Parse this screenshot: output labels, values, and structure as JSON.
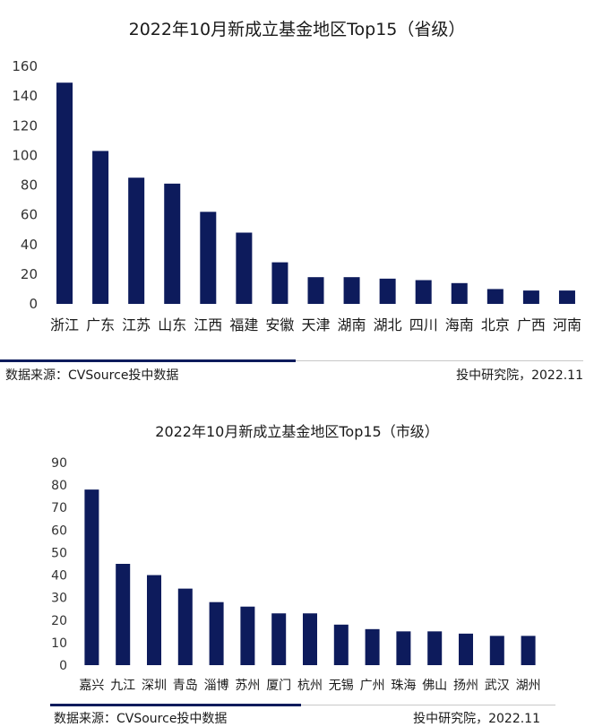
{
  "colors": {
    "bar": "#0d1b5c",
    "accent_line": "#0d1b5c",
    "light_line": "#c8c8c8"
  },
  "chart_data": [
    {
      "type": "bar",
      "title": "2022年10月新成立基金地区Top15（省级）",
      "categories": [
        "浙江",
        "广东",
        "江苏",
        "山东",
        "江西",
        "福建",
        "安徽",
        "天津",
        "湖南",
        "湖北",
        "四川",
        "海南",
        "北京",
        "广西",
        "河南"
      ],
      "values": [
        149,
        103,
        85,
        81,
        62,
        48,
        28,
        18,
        18,
        17,
        16,
        14,
        10,
        9,
        9
      ],
      "ylim": [
        0,
        160
      ],
      "yticks": [
        "0",
        "20",
        "40",
        "60",
        "80",
        "100",
        "120",
        "140",
        "160"
      ],
      "grid": false,
      "source": "数据来源：CVSource投中数据",
      "credit": "投中研究院，2022.11"
    },
    {
      "type": "bar",
      "title": "2022年10月新成立基金地区Top15（市级）",
      "categories": [
        "嘉兴",
        "九江",
        "深圳",
        "青岛",
        "淄博",
        "苏州",
        "厦门",
        "杭州",
        "无锡",
        "广州",
        "珠海",
        "佛山",
        "扬州",
        "武汉",
        "湖州"
      ],
      "values": [
        78,
        45,
        40,
        34,
        28,
        26,
        23,
        23,
        18,
        16,
        15,
        15,
        14,
        13,
        13
      ],
      "ylim": [
        0,
        90
      ],
      "yticks": [
        "0",
        "10",
        "20",
        "30",
        "40",
        "50",
        "60",
        "70",
        "80",
        "90"
      ],
      "grid": false,
      "source": "数据来源：CVSource投中数据",
      "credit": "投中研究院，2022.11"
    }
  ]
}
